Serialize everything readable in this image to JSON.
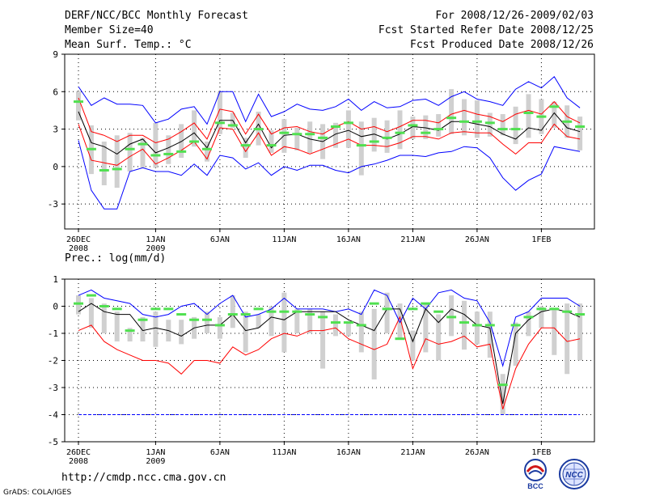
{
  "header": {
    "title": "DERF/NCC/BCC Monthly Forecast",
    "member_size": "Member Size=40",
    "variable": "Mean Surf. Temp.: °C",
    "forecast_range": "For 2008/12/26-2009/02/03",
    "started_refer": "Fcst Started Refer Date 2008/12/25",
    "produced": "Fcst Produced Date 2008/12/26"
  },
  "footer": {
    "url": "http://cmdp.ncc.cma.gov.cn",
    "credit": "GrADS: COLA/IGES",
    "logo_left_text": "BCC",
    "logo_right_text": "NCC"
  },
  "chart_data": [
    {
      "type": "line",
      "title": "Mean Surf. Temp.: °C",
      "ylim": [
        -5,
        9
      ],
      "yticks": [
        -3,
        0,
        3,
        6,
        9
      ],
      "x_start_day": 1,
      "x_end_day": 40,
      "xtick_days": [
        1,
        7,
        12,
        17,
        22,
        27,
        32,
        37
      ],
      "xticks": [
        "26DEC",
        "1JAN",
        "6JAN",
        "11JAN",
        "16JAN",
        "21JAN",
        "26JAN",
        "1FEB"
      ],
      "xticks_year": [
        "2008",
        "2009",
        "",
        "",
        "",
        "",
        "",
        ""
      ],
      "colors": {
        "ens_max": "#0000ff",
        "ens_min": "#0000ff",
        "upper": "#ff0000",
        "lower": "#ff0000",
        "mean": "#000000",
        "bar": "#d0d0d0",
        "dash": "#50e050"
      },
      "series": [
        {
          "name": "ens_max",
          "values": [
            6.4,
            4.9,
            5.5,
            5.0,
            5.0,
            4.9,
            3.5,
            3.8,
            4.6,
            4.8,
            3.4,
            6.0,
            6.0,
            3.6,
            5.8,
            4.0,
            4.4,
            5.0,
            4.6,
            4.5,
            4.8,
            5.4,
            4.5,
            5.2,
            4.7,
            4.8,
            5.3,
            5.4,
            4.9,
            5.6,
            6.0,
            5.4,
            5.2,
            4.9,
            6.2,
            6.8,
            6.3,
            7.2,
            5.5,
            4.7
          ]
        },
        {
          "name": "upper",
          "values": [
            5.5,
            2.8,
            2.5,
            2.0,
            2.5,
            2.5,
            1.9,
            2.2,
            2.8,
            3.5,
            2.2,
            4.6,
            4.4,
            2.6,
            4.2,
            2.6,
            3.1,
            3.2,
            2.8,
            2.6,
            3.2,
            3.6,
            3.0,
            3.2,
            2.8,
            3.2,
            3.7,
            3.7,
            3.5,
            4.2,
            4.5,
            4.2,
            4.0,
            3.6,
            4.2,
            4.5,
            4.2,
            5.2,
            4.0,
            3.5
          ]
        },
        {
          "name": "mean",
          "values": [
            4.4,
            1.9,
            1.6,
            1.0,
            1.8,
            2.2,
            1.1,
            1.5,
            2.0,
            2.7,
            1.5,
            3.7,
            3.7,
            1.9,
            3.4,
            1.5,
            2.5,
            2.6,
            2.2,
            2.0,
            2.6,
            2.9,
            2.4,
            2.6,
            2.2,
            2.6,
            3.2,
            3.1,
            2.9,
            3.6,
            3.6,
            3.4,
            3.2,
            2.6,
            2.2,
            3.1,
            2.9,
            4.3,
            3.1,
            2.8
          ]
        },
        {
          "name": "lower",
          "values": [
            3.4,
            0.5,
            0.3,
            0.1,
            0.8,
            1.4,
            0.2,
            0.7,
            1.3,
            2.0,
            0.6,
            3.1,
            3.0,
            1.2,
            2.7,
            0.9,
            1.6,
            1.4,
            1.0,
            1.4,
            1.8,
            2.2,
            1.7,
            1.7,
            1.6,
            1.9,
            2.4,
            2.4,
            2.2,
            2.7,
            2.8,
            2.7,
            2.7,
            1.8,
            1.0,
            1.9,
            1.9,
            3.4,
            2.4,
            2.2
          ]
        },
        {
          "name": "ens_min",
          "values": [
            2.1,
            -1.9,
            -3.4,
            -3.4,
            -0.4,
            -0.1,
            -0.4,
            -0.4,
            -0.7,
            0.2,
            -0.7,
            0.9,
            0.7,
            -0.2,
            0.3,
            -0.7,
            0.0,
            -0.3,
            0.1,
            0.1,
            -0.3,
            -0.5,
            0.0,
            0.2,
            0.5,
            0.9,
            0.9,
            0.8,
            1.1,
            1.2,
            1.6,
            1.5,
            0.7,
            -0.9,
            -1.9,
            -1.1,
            -0.6,
            1.6,
            1.4,
            1.2
          ]
        },
        {
          "name": "bar_top",
          "values": [
            6.0,
            3.3,
            2.0,
            2.5,
            2.7,
            2.3,
            3.5,
            2.5,
            3.4,
            4.5,
            2.0,
            6.0,
            4.3,
            2.3,
            4.4,
            2.9,
            3.8,
            3.1,
            3.6,
            3.4,
            3.5,
            4.5,
            3.6,
            3.9,
            3.7,
            4.5,
            4.0,
            4.1,
            4.2,
            6.2,
            5.4,
            5.3,
            4.3,
            4.2,
            4.8,
            5.8,
            5.4,
            5.2,
            4.9,
            4.0
          ]
        },
        {
          "name": "bar_bottom",
          "values": [
            3.7,
            -0.6,
            -1.5,
            -1.7,
            -0.4,
            -0.1,
            -0.1,
            0.2,
            0.7,
            1.6,
            0.4,
            2.6,
            3.1,
            0.7,
            1.7,
            1.1,
            1.1,
            1.3,
            1.1,
            0.6,
            1.5,
            1.5,
            -0.7,
            1.2,
            1.1,
            1.4,
            2.2,
            2.2,
            2.4,
            2.6,
            2.5,
            2.3,
            2.4,
            2.5,
            1.8,
            2.3,
            2.6,
            3.1,
            2.3,
            1.3
          ]
        },
        {
          "name": "green_marks",
          "values": [
            5.2,
            1.4,
            -0.3,
            -0.2,
            1.4,
            1.8,
            0.9,
            1.0,
            1.2,
            2.0,
            1.4,
            3.5,
            3.3,
            1.7,
            3.0,
            1.7,
            2.7,
            2.6,
            2.6,
            2.3,
            3.2,
            3.5,
            1.7,
            2.0,
            2.3,
            2.7,
            3.3,
            2.7,
            3.0,
            3.9,
            3.6,
            3.6,
            3.5,
            3.0,
            3.0,
            4.3,
            4.0,
            4.8,
            3.6,
            3.2
          ]
        }
      ]
    },
    {
      "type": "line",
      "title": "Prec.: log(mm/d)",
      "ylim": [
        -5,
        1
      ],
      "yticks": [
        -5,
        -4,
        -3,
        -2,
        -1,
        0,
        1
      ],
      "x_start_day": 1,
      "x_end_day": 40,
      "xtick_days": [
        1,
        7,
        12,
        17,
        22,
        27,
        32,
        37
      ],
      "xticks": [
        "26DEC",
        "1JAN",
        "6JAN",
        "11JAN",
        "16JAN",
        "21JAN",
        "26JAN",
        "1FEB"
      ],
      "xticks_year": [
        "2008",
        "2009",
        "",
        "",
        "",
        "",
        "",
        ""
      ],
      "colors": {
        "ens_max": "#0000ff",
        "lower": "#ff0000",
        "mean": "#000000",
        "floor": "#0000ff",
        "bar": "#d0d0d0",
        "dash": "#50e050"
      },
      "series": [
        {
          "name": "ens_max",
          "values": [
            0.4,
            0.6,
            0.3,
            0.2,
            0.1,
            -0.3,
            -0.4,
            -0.3,
            0.0,
            0.1,
            -0.3,
            0.1,
            0.4,
            -0.4,
            -0.3,
            -0.1,
            0.3,
            -0.1,
            -0.1,
            -0.1,
            -0.2,
            -0.1,
            -0.3,
            0.6,
            0.4,
            -0.6,
            0.3,
            -0.1,
            0.5,
            0.6,
            0.3,
            0.2,
            -0.6,
            -2.2,
            -0.4,
            -0.2,
            0.3,
            0.3,
            0.3,
            0.0
          ]
        },
        {
          "name": "mean",
          "values": [
            -0.2,
            0.1,
            -0.2,
            -0.3,
            -0.3,
            -0.9,
            -0.8,
            -0.9,
            -1.1,
            -0.8,
            -0.7,
            -0.7,
            -0.3,
            -0.9,
            -0.8,
            -0.4,
            -0.5,
            -0.2,
            -0.2,
            -0.2,
            -0.2,
            -0.5,
            -0.7,
            -0.9,
            -0.1,
            -0.1,
            -1.3,
            -0.1,
            -0.6,
            -0.1,
            -0.3,
            -0.7,
            -0.8,
            -3.6,
            -1.0,
            -0.5,
            -0.2,
            -0.1,
            -0.2,
            -0.4
          ]
        },
        {
          "name": "lower",
          "values": [
            -0.9,
            -0.7,
            -1.3,
            -1.6,
            -1.8,
            -2.0,
            -2.0,
            -2.1,
            -2.5,
            -2.0,
            -2.0,
            -2.1,
            -1.5,
            -1.8,
            -1.6,
            -1.2,
            -1.0,
            -1.1,
            -0.9,
            -0.9,
            -0.8,
            -1.2,
            -1.4,
            -1.6,
            -1.4,
            -0.4,
            -2.3,
            -1.2,
            -1.4,
            -1.3,
            -1.1,
            -1.5,
            -1.4,
            -3.8,
            -2.3,
            -1.4,
            -0.8,
            -0.8,
            -1.3,
            -1.2
          ]
        },
        {
          "name": "floor",
          "values": [
            -4,
            -4,
            -4,
            -4,
            -4,
            -4,
            -4,
            -4,
            -4,
            -4,
            -4,
            -4,
            -4,
            -4,
            -4,
            -4,
            -4,
            -4,
            -4,
            -4,
            -4,
            -4,
            -4,
            -4,
            -4,
            -4,
            -4,
            -4,
            -4,
            -4,
            -4,
            -4,
            -4,
            -4,
            -4,
            -4,
            -4,
            -4,
            -4,
            -4
          ]
        },
        {
          "name": "bar_top",
          "values": [
            0.4,
            0.3,
            0.1,
            -0.2,
            -0.8,
            -0.4,
            -0.2,
            -0.5,
            -0.5,
            -0.4,
            -0.2,
            -0.4,
            0.4,
            -0.2,
            -0.3,
            0.0,
            0.5,
            -0.1,
            -0.1,
            -0.2,
            -0.3,
            -0.6,
            -0.2,
            -0.1,
            0.5,
            0.1,
            -0.9,
            0.1,
            -0.3,
            0.4,
            0.2,
            -0.2,
            -0.2,
            -2.5,
            -0.6,
            -0.2,
            0.0,
            -0.1,
            0.1,
            0.1
          ]
        },
        {
          "name": "bar_bottom",
          "values": [
            -0.3,
            -0.8,
            -1.0,
            -1.3,
            -1.3,
            -1.3,
            -1.5,
            -1.3,
            -1.4,
            -1.2,
            -1.0,
            -1.2,
            -0.8,
            -1.7,
            -0.8,
            -1.1,
            -1.7,
            -1.0,
            -1.0,
            -2.3,
            -1.1,
            -1.1,
            -1.7,
            -2.7,
            -1.0,
            -1.2,
            -2.0,
            -1.7,
            -2.0,
            -1.1,
            -1.6,
            -1.4,
            -1.9,
            -4.0,
            -2.2,
            -1.1,
            -0.8,
            -1.8,
            -2.5,
            -2.0
          ]
        },
        {
          "name": "green_marks",
          "values": [
            0.1,
            0.4,
            0.0,
            -0.1,
            -0.9,
            -0.5,
            -0.1,
            -0.1,
            -0.3,
            -0.5,
            -0.5,
            -0.7,
            -0.3,
            -0.3,
            -0.1,
            -0.2,
            -0.2,
            -0.2,
            -0.3,
            -0.4,
            -0.6,
            -0.6,
            -0.7,
            0.1,
            -0.1,
            -1.2,
            -0.1,
            0.1,
            -0.2,
            -0.4,
            -0.6,
            -0.7,
            -0.7,
            -2.9,
            -0.7,
            -0.4,
            -0.1,
            -0.1,
            -0.2,
            -0.3
          ]
        }
      ]
    }
  ]
}
